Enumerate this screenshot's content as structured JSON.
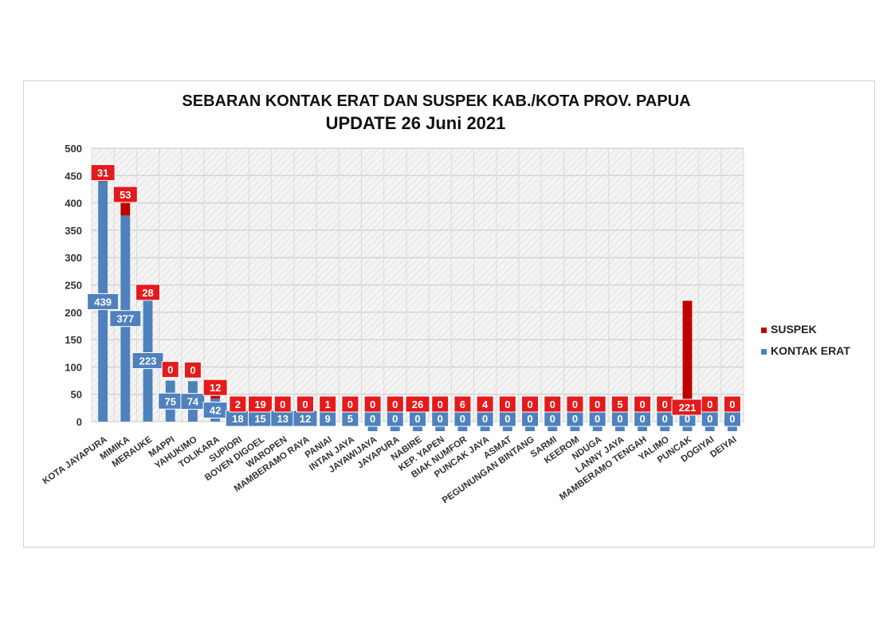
{
  "chart_data": {
    "type": "bar",
    "stacked": true,
    "title": "SEBARAN KONTAK ERAT DAN SUSPEK KAB./KOTA PROV. PAPUA",
    "subtitle": "UPDATE 26 Juni 2021",
    "ylim": [
      0,
      500
    ],
    "yticks": [
      0,
      50,
      100,
      150,
      200,
      250,
      300,
      350,
      400,
      450,
      500
    ],
    "categories": [
      "KOTA JAYAPURA",
      "MIMIKA",
      "MERAUKE",
      "MAPPI",
      "YAHUKIMO",
      "TOLIKARA",
      "SUPIORI",
      "BOVEN DIGOEL",
      "WAROPEN",
      "MAMBERAMO RAYA",
      "PANIAI",
      "INTAN JAYA",
      "JAYAWIJAYA",
      "JAYAPURA",
      "NABIRE",
      "KEP. YAPEN",
      "BIAK NUMFOR",
      "PUNCAK JAYA",
      "ASMAT",
      "PEGUNUNGAN BINTANG",
      "SARMI",
      "KEEROM",
      "NDUGA",
      "LANNY JAYA",
      "MAMBERAMO TENGAH",
      "YALIMO",
      "PUNCAK",
      "DOGIYAI",
      "DEIYAI"
    ],
    "series": [
      {
        "name": "KONTAK ERAT",
        "color": "#4f81bd",
        "values": [
          439,
          377,
          223,
          75,
          74,
          42,
          18,
          15,
          13,
          12,
          9,
          5,
          0,
          0,
          0,
          0,
          0,
          0,
          0,
          0,
          0,
          0,
          0,
          0,
          0,
          0,
          0,
          0,
          0
        ]
      },
      {
        "name": "SUSPEK",
        "color": "#c00000",
        "values": [
          31,
          53,
          28,
          0,
          0,
          12,
          2,
          19,
          0,
          0,
          1,
          0,
          0,
          0,
          26,
          0,
          6,
          4,
          0,
          0,
          0,
          0,
          0,
          5,
          0,
          0,
          221,
          0,
          0
        ]
      }
    ],
    "legend_position": "right",
    "grid": true
  }
}
